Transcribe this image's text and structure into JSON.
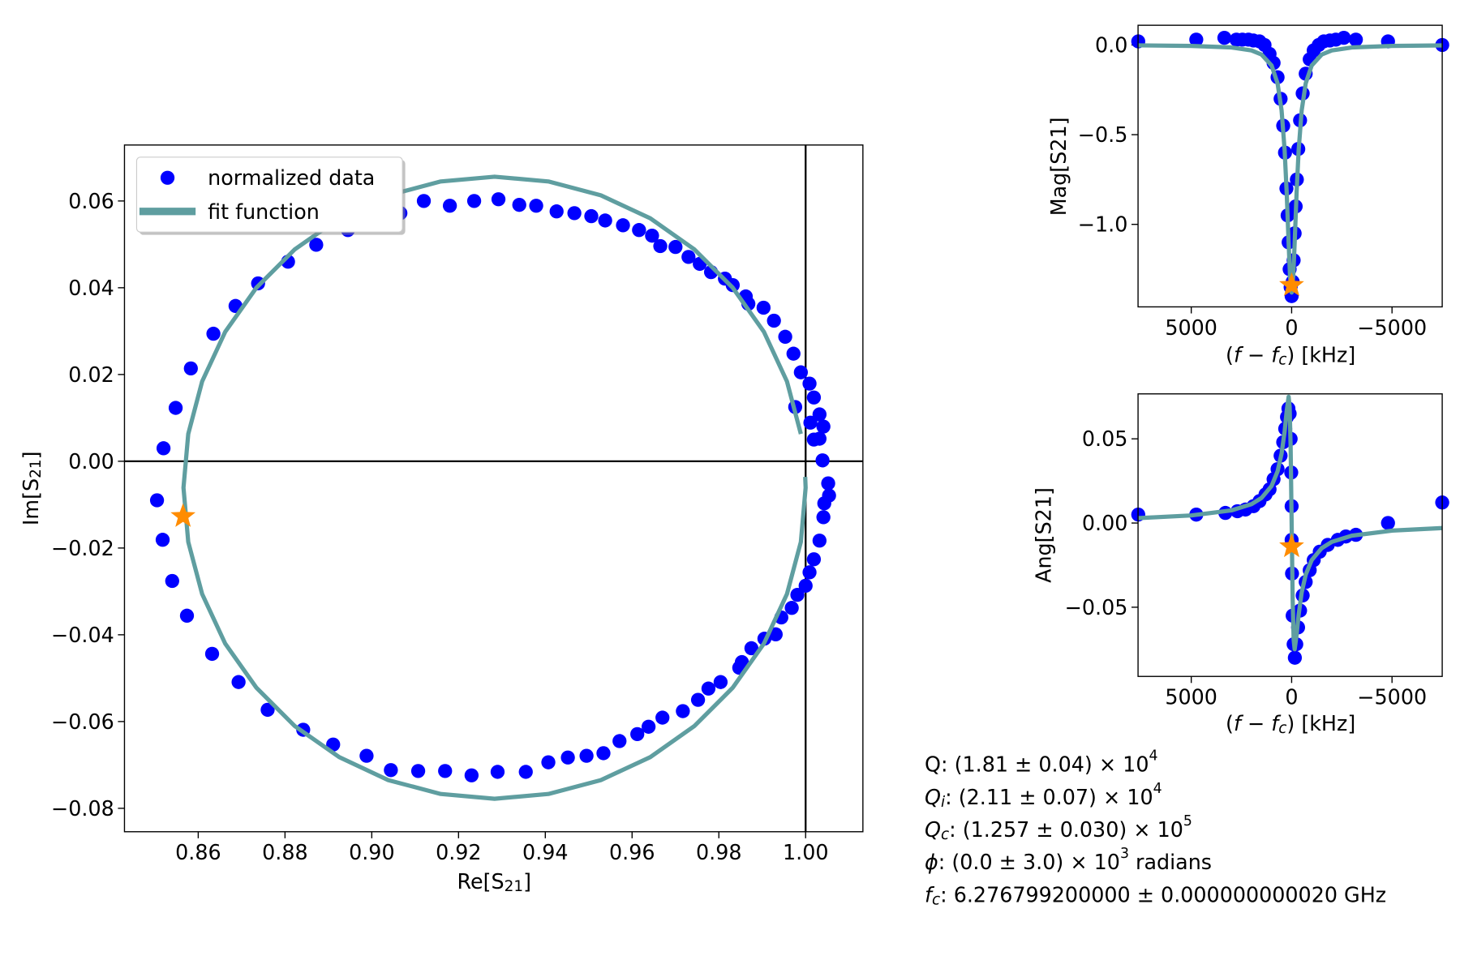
{
  "chart_data": [
    {
      "type": "scatter",
      "xlabel": [
        "Re[S",
        "21",
        "]"
      ],
      "ylabel": [
        "Im[S",
        "21",
        "]"
      ],
      "xlim": [
        0.843,
        1.0132
      ],
      "ylim": [
        -0.0854,
        0.0729
      ],
      "xticks": [
        0.86,
        0.88,
        {
          "value": 0.9,
          "label": "0.90"
        },
        0.92,
        0.94,
        0.96,
        0.98,
        {
          "value": 1,
          "label": "1.00"
        }
      ],
      "yticks": [
        {
          "value": -0.08,
          "label": "−0.08"
        },
        {
          "value": -0.06,
          "label": "−0.06"
        },
        {
          "value": -0.04,
          "label": "−0.04"
        },
        {
          "value": -0.02,
          "label": "−0.02"
        },
        {
          "value": 0,
          "label": "0.00"
        },
        0.02,
        0.04,
        0.06
      ],
      "reference_lines": {
        "x": 1,
        "y": 0
      },
      "legend": "upper left",
      "series": [
        {
          "name": "normalized data",
          "type": "scatter",
          "color": "#0000ff",
          "x": [
            0.852,
            0.8548,
            0.8583,
            0.8635,
            0.8686,
            0.8738,
            0.8807,
            0.8872,
            0.8945,
            0.9001,
            0.9066,
            0.912,
            0.918,
            0.9236,
            0.9292,
            0.934,
            0.9379,
            0.9426,
            0.9467,
            0.9506,
            0.9538,
            0.9579,
            0.9616,
            0.9646,
            0.9665,
            0.97,
            0.973,
            0.9756,
            0.9782,
            0.9814,
            0.9832,
            0.9862,
            0.9868,
            0.9903,
            0.9927,
            0.9953,
            0.9972,
            0.9989,
            1.0009,
            1.0019,
            1.0032,
            1.0041,
            1.0032,
            1.0019,
            0.9976,
            1.0011,
            1.0039,
            1.0052,
            1.0054,
            1.0043,
            1.0041,
            1.0032,
            1.0019,
            1.0009,
            1.0,
            0.9981,
            0.9968,
            0.9944,
            0.9931,
            0.9905,
            0.9875,
            0.9853,
            0.9847,
            0.9804,
            0.9776,
            0.9752,
            0.9717,
            0.967,
            0.9638,
            0.9612,
            0.9571,
            0.9534,
            0.9495,
            0.9452,
            0.9407,
            0.9355,
            0.929,
            0.923,
            0.9169,
            0.9107,
            0.9044,
            0.8988,
            0.8911,
            0.8842,
            0.876,
            0.8693,
            0.8632,
            0.8574,
            0.854,
            0.8518,
            0.8505
          ],
          "values": [
            0.003,
            0.0123,
            0.0214,
            0.0294,
            0.0358,
            0.041,
            0.046,
            0.0499,
            0.0533,
            0.0557,
            0.0572,
            0.06,
            0.0589,
            0.06,
            0.0604,
            0.0591,
            0.0589,
            0.0576,
            0.0572,
            0.0565,
            0.0555,
            0.0544,
            0.0533,
            0.052,
            0.0496,
            0.0494,
            0.0471,
            0.0455,
            0.0436,
            0.0421,
            0.0406,
            0.038,
            0.0363,
            0.0354,
            0.0324,
            0.0287,
            0.0248,
            0.0205,
            0.0179,
            0.0147,
            0.0108,
            0.008,
            0.0052,
            0.005,
            0.0125,
            0.0089,
            0.0002,
            -0.0051,
            -0.0079,
            -0.0097,
            -0.0129,
            -0.0183,
            -0.0226,
            -0.0256,
            -0.0287,
            -0.0308,
            -0.0338,
            -0.036,
            -0.0399,
            -0.0409,
            -0.0431,
            -0.0463,
            -0.0476,
            -0.0509,
            -0.0524,
            -0.055,
            -0.0576,
            -0.0591,
            -0.0612,
            -0.0629,
            -0.0645,
            -0.0673,
            -0.0679,
            -0.0683,
            -0.0694,
            -0.0716,
            -0.0716,
            -0.0724,
            -0.0714,
            -0.0714,
            -0.0712,
            -0.0679,
            -0.0653,
            -0.0619,
            -0.0573,
            -0.0509,
            -0.0444,
            -0.0356,
            -0.0276,
            -0.0181,
            -0.009
          ]
        },
        {
          "name": "fit function",
          "type": "line",
          "color": "#5f9ea0",
          "x": [
            0.9989,
            0.9957,
            0.9904,
            0.9832,
            0.9744,
            0.9642,
            0.9528,
            0.9407,
            0.9283,
            0.9159,
            0.9038,
            0.8925,
            0.8822,
            0.8734,
            0.8662,
            0.8609,
            0.8577,
            0.8566,
            0.8577,
            0.8609,
            0.8662,
            0.8734,
            0.8822,
            0.8925,
            0.9038,
            0.9159,
            0.9283,
            0.9407,
            0.9528,
            0.9642,
            0.9744,
            0.9832,
            0.9904,
            0.9957,
            0.9989,
            1.0,
            0.9999
          ],
          "values": [
            0.0063,
            0.0184,
            0.0298,
            0.04,
            0.0488,
            0.056,
            0.0613,
            0.0645,
            0.0656,
            0.0645,
            0.0613,
            0.056,
            0.0488,
            0.04,
            0.0298,
            0.0184,
            0.0063,
            -0.0061,
            -0.0186,
            -0.0306,
            -0.042,
            -0.0522,
            -0.061,
            -0.0682,
            -0.0735,
            -0.0767,
            -0.0778,
            -0.0767,
            -0.0735,
            -0.0682,
            -0.061,
            -0.0522,
            -0.042,
            -0.0306,
            -0.0186,
            -0.0061,
            -0.0036
          ]
        }
      ],
      "highlight": {
        "x": 0.8565,
        "y": -0.0127,
        "color": "#ff8c00"
      }
    },
    {
      "type": "scatter",
      "xlabel": [
        "(",
        "f",
        " − ",
        "f",
        "c",
        ") [kHz]"
      ],
      "ylabel": "Mag[S21]",
      "xlim": [
        7650,
        -7500
      ],
      "ylim": [
        -1.46,
        0.11
      ],
      "xticks": [
        5000,
        0,
        {
          "value": -5000,
          "label": "−5000"
        }
      ],
      "yticks": [
        {
          "value": 0,
          "label": "0.0"
        },
        {
          "value": -0.5,
          "label": "−0.5"
        },
        {
          "value": -1,
          "label": "−1.0"
        }
      ],
      "series": [
        {
          "type": "scatter",
          "color": "#0000ff",
          "x": [
            7640,
            4750,
            3350,
            2750,
            2450,
            2150,
            1900,
            1600,
            1350,
            1100,
            900,
            700,
            550,
            420,
            330,
            260,
            200,
            150,
            100,
            50,
            0,
            -50,
            -100,
            -150,
            -200,
            -260,
            -330,
            -420,
            -550,
            -700,
            -900,
            -1100,
            -1350,
            -1600,
            -1900,
            -2200,
            -2600,
            -3200,
            -4800,
            -7500
          ],
          "values": [
            0.02,
            0.03,
            0.04,
            0.03,
            0.03,
            0.03,
            0.025,
            0.02,
            0.0,
            -0.05,
            -0.1,
            -0.18,
            -0.3,
            -0.45,
            -0.6,
            -0.8,
            -0.95,
            -1.1,
            -1.25,
            -1.35,
            -1.4,
            -1.32,
            -1.2,
            -1.05,
            -0.9,
            -0.75,
            -0.58,
            -0.42,
            -0.27,
            -0.16,
            -0.08,
            -0.03,
            0.0,
            0.02,
            0.025,
            0.03,
            0.04,
            0.03,
            0.02,
            0.0
          ]
        },
        {
          "type": "line",
          "color": "#5f9ea0",
          "x": [
            7650,
            5000,
            3000,
            2000,
            1500,
            1000,
            700,
            500,
            350,
            250,
            150,
            80,
            0,
            -80,
            -150,
            -250,
            -350,
            -500,
            -700,
            -1000,
            -1500,
            -2000,
            -3000,
            -5000,
            -7500
          ],
          "values": [
            -0.0021,
            -0.005,
            -0.0137,
            -0.0304,
            -0.0531,
            -0.114,
            -0.2141,
            -0.3653,
            -0.5845,
            -0.8146,
            -1.104,
            -1.2884,
            -1.38,
            -1.2884,
            -1.104,
            -0.8146,
            -0.5845,
            -0.3653,
            -0.2141,
            -0.114,
            -0.0531,
            -0.0304,
            -0.0137,
            -0.005,
            -0.0022
          ]
        }
      ],
      "highlight": {
        "x": 0,
        "y": -1.34,
        "color": "#ff8c00"
      }
    },
    {
      "type": "scatter",
      "xlabel": [
        "(",
        "f",
        " − ",
        "f",
        "c",
        ") [kHz]"
      ],
      "ylabel": "Ang[S21]",
      "xlim": [
        7650,
        -7500
      ],
      "ylim": [
        -0.0911,
        0.0767
      ],
      "xticks": [
        5000,
        0,
        {
          "value": -5000,
          "label": "−5000"
        }
      ],
      "yticks": [
        0.05,
        {
          "value": 0,
          "label": "0.00"
        },
        {
          "value": -0.05,
          "label": "−0.05"
        }
      ],
      "series": [
        {
          "type": "scatter",
          "color": "#0000ff",
          "x": [
            7640,
            4750,
            3300,
            2700,
            2300,
            1900,
            1600,
            1300,
            1100,
            900,
            700,
            550,
            420,
            320,
            230,
            160,
            100,
            50,
            20,
            0,
            0,
            -20,
            -50,
            -100,
            -160,
            -230,
            -320,
            -420,
            -550,
            -700,
            -900,
            -1100,
            -1400,
            -1800,
            -2300,
            -2700,
            -3200,
            -4800,
            -7500
          ],
          "values": [
            0.005,
            0.005,
            0.006,
            0.007,
            0.008,
            0.01,
            0.013,
            0.017,
            0.02,
            0.026,
            0.032,
            0.04,
            0.048,
            0.056,
            0.063,
            0.068,
            0.065,
            0.05,
            0.03,
            0.01,
            -0.01,
            -0.03,
            -0.055,
            -0.072,
            -0.08,
            -0.072,
            -0.062,
            -0.052,
            -0.043,
            -0.035,
            -0.028,
            -0.022,
            -0.017,
            -0.013,
            -0.01,
            -0.008,
            -0.007,
            0.0,
            0.0122
          ]
        },
        {
          "type": "line",
          "color": "#5f9ea0",
          "x": [
            7650,
            5000,
            3000,
            2000,
            1500,
            1000,
            700,
            500,
            350,
            250,
            150,
            100,
            50,
            0,
            -50,
            -100,
            -150,
            -250,
            -350,
            -500,
            -700,
            -1000,
            -1500,
            -2000,
            -3000,
            -5000,
            -7500
          ],
          "values": [
            0.0029,
            0.0045,
            0.0075,
            0.0112,
            0.0149,
            0.022,
            0.0307,
            0.0413,
            0.0543,
            0.0662,
            0.075,
            0.0692,
            0.045,
            0,
            -0.045,
            -0.0692,
            -0.075,
            -0.0662,
            -0.0543,
            -0.0413,
            -0.0307,
            -0.022,
            -0.0149,
            -0.0112,
            -0.0075,
            -0.0045,
            -0.003
          ]
        }
      ],
      "highlight": {
        "x": 0,
        "y": -0.014,
        "color": "#ff8c00"
      }
    }
  ],
  "fit_parameters": [
    [
      "Q: (1.81 ± 0.04) × 10",
      "4"
    ],
    [
      "Q",
      "i",
      ": (2.11 ± 0.07) × 10",
      "4"
    ],
    [
      "Q",
      "c",
      ": (1.257 ± 0.030) × 10",
      "5"
    ],
    [
      "ϕ",
      ": (0.0 ± 3.0) × 10",
      "3",
      " radians"
    ],
    [
      "f",
      "c",
      ": 6.276799200000 ± 0.000000000020 GHz"
    ]
  ]
}
